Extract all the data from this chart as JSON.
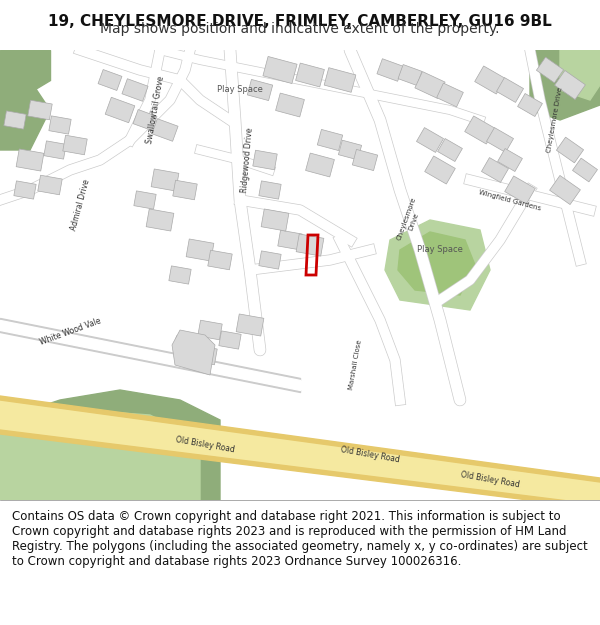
{
  "title_line1": "19, CHEYLESMORE DRIVE, FRIMLEY, CAMBERLEY, GU16 9BL",
  "title_line2": "Map shows position and indicative extent of the property.",
  "footer_text": "Contains OS data © Crown copyright and database right 2021. This information is subject to Crown copyright and database rights 2023 and is reproduced with the permission of HM Land Registry. The polygons (including the associated geometry, namely x, y co-ordinates) are subject to Crown copyright and database rights 2023 Ordnance Survey 100026316.",
  "title_fontsize": 11,
  "subtitle_fontsize": 10,
  "footer_fontsize": 8.5,
  "fig_width": 6.0,
  "fig_height": 6.25,
  "map_bg": "#f5f5f2",
  "road_color": "#ffffff",
  "road_edge_color": "#cccccc",
  "building_color": "#d9d9d9",
  "building_edge": "#aaaaaa",
  "green_area": "#8fad7a",
  "green_light": "#b8d4a0",
  "road_major_fill": "#f5e9a0",
  "road_major_edge": "#e6c96b",
  "plot_color": "#cc0000",
  "footer_bg": "#ffffff",
  "title_bg": "#ffffff"
}
